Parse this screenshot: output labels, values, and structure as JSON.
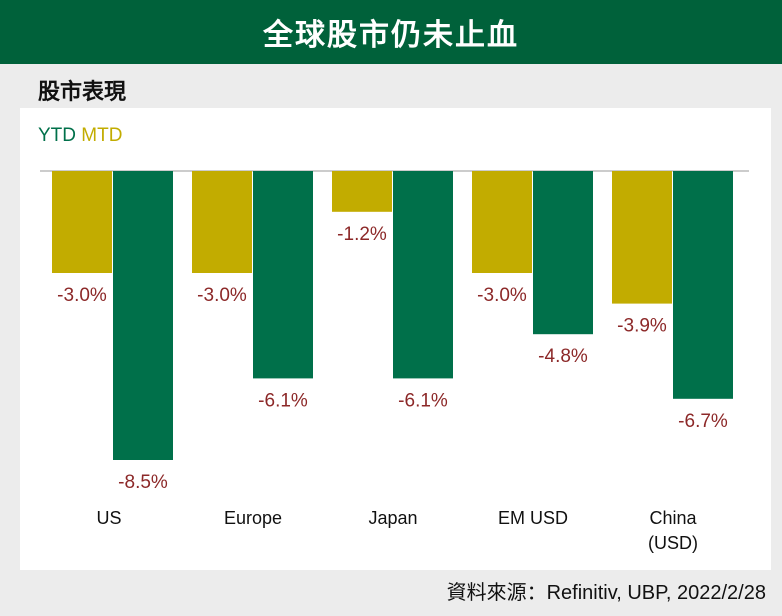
{
  "header": {
    "title": "全球股市仍未止血"
  },
  "subtitle": "股市表現",
  "source": "資料來源：Refinitiv, UBP, 2022/2/28",
  "colors": {
    "ytd": "#00704a",
    "mtd": "#c2ac00",
    "label": "#8c2828",
    "header": "#00613a"
  },
  "chart_data": {
    "type": "bar",
    "categories": [
      "US",
      "Europe",
      "Japan",
      "EM USD",
      "China (USD)"
    ],
    "category_lines": [
      [
        "US"
      ],
      [
        "Europe"
      ],
      [
        "Japan"
      ],
      [
        "EM USD"
      ],
      [
        "China",
        "(USD)"
      ]
    ],
    "series": [
      {
        "name": "MTD",
        "values": [
          -3.0,
          -3.0,
          -1.2,
          -3.0,
          -3.9
        ],
        "labels": [
          "-3.0%",
          "-3.0%",
          "-1.2%",
          "-3.0%",
          "-3.9%"
        ]
      },
      {
        "name": "YTD",
        "values": [
          -8.5,
          -6.1,
          -6.1,
          -4.8,
          -6.7
        ],
        "labels": [
          "-8.5%",
          "-6.1%",
          "-6.1%",
          "-4.8%",
          "-6.7%"
        ]
      }
    ],
    "legend": [
      "YTD",
      "MTD"
    ],
    "legend_position": "top-left",
    "ylim": [
      -8.5,
      0
    ],
    "grid": false
  }
}
